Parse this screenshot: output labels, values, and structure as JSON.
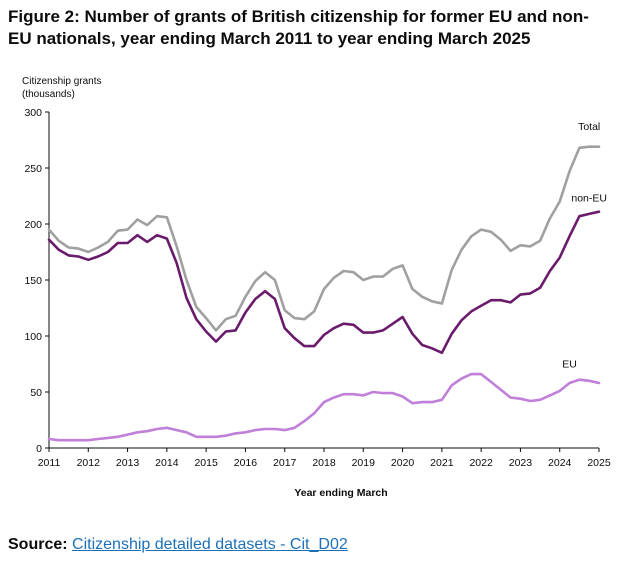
{
  "title": "Figure 2: Number of grants of British citizenship for former EU and non-EU nationals, year ending March 2011 to year ending March 2025",
  "source": {
    "label": "Source:",
    "link_text": "Citizenship detailed datasets - Cit_D02"
  },
  "chart_data": {
    "type": "line",
    "ylabel_lines": [
      "Citizenship grants",
      "(thousands)"
    ],
    "xlabel": "Year ending March",
    "ylim": [
      0,
      300
    ],
    "xlim": [
      2011,
      2025
    ],
    "yticks": [
      0,
      50,
      100,
      150,
      200,
      250,
      300
    ],
    "xticks": [
      "2011",
      "2012",
      "2013",
      "2014",
      "2015",
      "2016",
      "2017",
      "2018",
      "2019",
      "2020",
      "2021",
      "2022",
      "2023",
      "2024",
      "2025"
    ],
    "grid": false,
    "x": [
      2011.0,
      2011.25,
      2011.5,
      2011.75,
      2012.0,
      2012.25,
      2012.5,
      2012.75,
      2013.0,
      2013.25,
      2013.5,
      2013.75,
      2014.0,
      2014.25,
      2014.5,
      2014.75,
      2015.0,
      2015.25,
      2015.5,
      2015.75,
      2016.0,
      2016.25,
      2016.5,
      2016.75,
      2017.0,
      2017.25,
      2017.5,
      2017.75,
      2018.0,
      2018.25,
      2018.5,
      2018.75,
      2019.0,
      2019.25,
      2019.5,
      2019.75,
      2020.0,
      2020.25,
      2020.5,
      2020.75,
      2021.0,
      2021.25,
      2021.5,
      2021.75,
      2022.0,
      2022.25,
      2022.5,
      2022.75,
      2023.0,
      2023.25,
      2023.5,
      2023.75,
      2024.0,
      2024.25,
      2024.5,
      2024.75,
      2025.0
    ],
    "series": [
      {
        "name": "Total",
        "color": "#a0a0a0",
        "label_pos": [
          2024.75,
          284
        ],
        "values": [
          195,
          185,
          179,
          178,
          175,
          179,
          184,
          194,
          195,
          204,
          199,
          207,
          206,
          180,
          150,
          126,
          116,
          105,
          115,
          118,
          135,
          149,
          157,
          150,
          123,
          116,
          115,
          122,
          142,
          152,
          158,
          157,
          150,
          153,
          153,
          160,
          163,
          142,
          135,
          131,
          129,
          159,
          177,
          189,
          195,
          193,
          186,
          176,
          181,
          180,
          185,
          205,
          220,
          247,
          268,
          269,
          269
        ]
      },
      {
        "name": "non-EU",
        "color": "#6a1b6b",
        "label_pos": [
          2024.75,
          220
        ],
        "values": [
          186,
          177,
          172,
          171,
          168,
          171,
          175,
          183,
          183,
          190,
          184,
          190,
          187,
          165,
          134,
          115,
          104,
          95,
          104,
          105,
          121,
          133,
          140,
          133,
          107,
          98,
          91,
          91,
          101,
          107,
          111,
          110,
          103,
          103,
          105,
          111,
          117,
          102,
          92,
          89,
          85,
          102,
          114,
          122,
          127,
          132,
          132,
          130,
          137,
          138,
          143,
          158,
          170,
          189,
          207,
          209,
          211
        ]
      },
      {
        "name": "EU",
        "color": "#c07fd8",
        "label_pos": [
          2024.25,
          72
        ],
        "values": [
          8,
          7,
          7,
          7,
          7,
          8,
          9,
          10,
          12,
          14,
          15,
          17,
          18,
          16,
          14,
          10,
          10,
          10,
          11,
          13,
          14,
          16,
          17,
          17,
          16,
          18,
          24,
          31,
          41,
          45,
          48,
          48,
          47,
          50,
          49,
          49,
          46,
          40,
          41,
          41,
          43,
          56,
          62,
          66,
          66,
          59,
          52,
          45,
          44,
          42,
          43,
          47,
          51,
          58,
          61,
          60,
          58
        ]
      }
    ]
  }
}
